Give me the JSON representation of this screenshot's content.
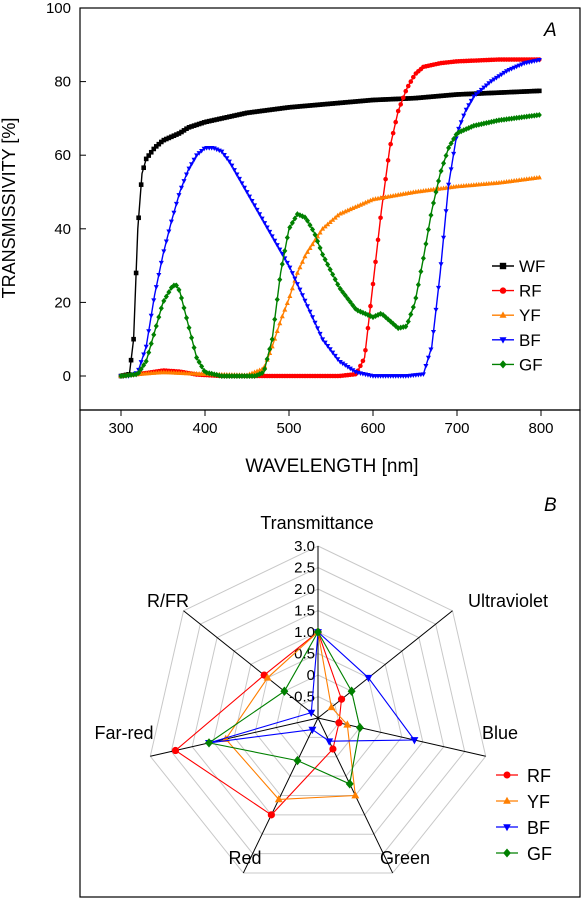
{
  "chart_data": [
    {
      "type": "line",
      "panel_label": "A",
      "xlabel": "WAVELENGTH [nm]",
      "ylabel": "TRANSMISSIVITY [%]",
      "xlim": [
        300,
        800
      ],
      "ylim": [
        0,
        100
      ],
      "xticks": [
        300,
        400,
        500,
        600,
        700,
        800
      ],
      "yticks": [
        0,
        20,
        40,
        60,
        80,
        100
      ],
      "grid": false,
      "legend_position": "right-lower",
      "series": [
        {
          "name": "WF",
          "color": "#000000",
          "marker": "square",
          "points": [
            [
              300,
              0
            ],
            [
              310,
              0.5
            ],
            [
              315,
              10
            ],
            [
              320,
              40
            ],
            [
              325,
              55
            ],
            [
              330,
              59
            ],
            [
              340,
              62
            ],
            [
              350,
              64
            ],
            [
              360,
              65
            ],
            [
              370,
              66
            ],
            [
              380,
              67.5
            ],
            [
              400,
              69
            ],
            [
              420,
              70
            ],
            [
              450,
              71.5
            ],
            [
              500,
              73
            ],
            [
              550,
              74
            ],
            [
              600,
              75
            ],
            [
              650,
              75.5
            ],
            [
              700,
              76.5
            ],
            [
              750,
              77
            ],
            [
              800,
              77.5
            ]
          ]
        },
        {
          "name": "RF",
          "color": "#ff0000",
          "marker": "circle",
          "points": [
            [
              300,
              0
            ],
            [
              330,
              0.8
            ],
            [
              350,
              1.5
            ],
            [
              370,
              1.2
            ],
            [
              390,
              0.4
            ],
            [
              420,
              0
            ],
            [
              500,
              0
            ],
            [
              560,
              0
            ],
            [
              580,
              0.5
            ],
            [
              590,
              5
            ],
            [
              600,
              25
            ],
            [
              610,
              45
            ],
            [
              620,
              62
            ],
            [
              630,
              72
            ],
            [
              640,
              78
            ],
            [
              650,
              82
            ],
            [
              660,
              84
            ],
            [
              680,
              85
            ],
            [
              700,
              85.5
            ],
            [
              750,
              86
            ],
            [
              800,
              86
            ]
          ]
        },
        {
          "name": "YF",
          "color": "#ff7f00",
          "marker": "triangle-up",
          "points": [
            [
              300,
              0
            ],
            [
              320,
              0.5
            ],
            [
              350,
              1
            ],
            [
              400,
              0.5
            ],
            [
              450,
              0.2
            ],
            [
              470,
              2
            ],
            [
              480,
              8
            ],
            [
              490,
              15
            ],
            [
              500,
              21
            ],
            [
              510,
              28
            ],
            [
              520,
              33
            ],
            [
              540,
              40
            ],
            [
              560,
              44
            ],
            [
              580,
              46
            ],
            [
              600,
              48
            ],
            [
              650,
              50
            ],
            [
              700,
              51.5
            ],
            [
              750,
              52.5
            ],
            [
              800,
              54
            ]
          ]
        },
        {
          "name": "BF",
          "color": "#0000ff",
          "marker": "triangle-down",
          "points": [
            [
              300,
              0
            ],
            [
              310,
              0
            ],
            [
              320,
              1
            ],
            [
              330,
              8
            ],
            [
              340,
              22
            ],
            [
              350,
              33
            ],
            [
              360,
              42
            ],
            [
              370,
              50
            ],
            [
              380,
              56
            ],
            [
              390,
              60
            ],
            [
              400,
              62
            ],
            [
              410,
              62
            ],
            [
              420,
              61
            ],
            [
              430,
              58
            ],
            [
              440,
              54
            ],
            [
              460,
              46
            ],
            [
              480,
              38
            ],
            [
              500,
              30
            ],
            [
              520,
              20
            ],
            [
              540,
              10
            ],
            [
              560,
              4
            ],
            [
              580,
              1
            ],
            [
              600,
              0
            ],
            [
              640,
              0
            ],
            [
              660,
              0.5
            ],
            [
              670,
              8
            ],
            [
              680,
              28
            ],
            [
              690,
              52
            ],
            [
              700,
              66
            ],
            [
              710,
              72
            ],
            [
              720,
              76
            ],
            [
              740,
              80
            ],
            [
              760,
              83
            ],
            [
              780,
              85
            ],
            [
              800,
              86
            ]
          ]
        },
        {
          "name": "GF",
          "color": "#008000",
          "marker": "diamond",
          "points": [
            [
              300,
              0
            ],
            [
              320,
              0.5
            ],
            [
              330,
              4
            ],
            [
              340,
              12
            ],
            [
              350,
              20
            ],
            [
              360,
              24
            ],
            [
              365,
              25
            ],
            [
              370,
              23
            ],
            [
              380,
              14
            ],
            [
              390,
              5
            ],
            [
              400,
              1
            ],
            [
              420,
              0
            ],
            [
              460,
              0
            ],
            [
              470,
              1
            ],
            [
              480,
              10
            ],
            [
              490,
              28
            ],
            [
              500,
              40
            ],
            [
              510,
              44
            ],
            [
              520,
              43
            ],
            [
              530,
              39
            ],
            [
              540,
              33
            ],
            [
              560,
              24
            ],
            [
              580,
              18
            ],
            [
              600,
              16
            ],
            [
              610,
              17
            ],
            [
              620,
              15
            ],
            [
              630,
              13
            ],
            [
              640,
              13.5
            ],
            [
              650,
              20
            ],
            [
              660,
              32
            ],
            [
              670,
              45
            ],
            [
              680,
              55
            ],
            [
              690,
              62
            ],
            [
              700,
              66
            ],
            [
              720,
              68
            ],
            [
              750,
              69.5
            ],
            [
              800,
              71
            ]
          ]
        }
      ]
    },
    {
      "type": "radar",
      "panel_label": "B",
      "axes": [
        "Transmittance",
        "Ultraviolet",
        "Blue",
        "Green",
        "Red",
        "Far-red",
        "R/FR"
      ],
      "radial_ticks": [
        "3.0",
        "2.5",
        "2.0",
        "1.5",
        "1.0",
        "0.5",
        "0",
        "-0.5"
      ],
      "rlim": [
        -1.0,
        3.0
      ],
      "grid": true,
      "legend_position": "bottom-right",
      "series": [
        {
          "name": "RF",
          "color": "#ff0000",
          "marker": "circle",
          "values": [
            1.0,
            -0.3,
            -0.5,
            -0.2,
            1.5,
            2.4,
            0.6
          ]
        },
        {
          "name": "YF",
          "color": "#ff7f00",
          "marker": "triangle-up",
          "values": [
            1.0,
            -0.6,
            -0.3,
            1.0,
            1.1,
            1.2,
            0.5
          ]
        },
        {
          "name": "BF",
          "color": "#0000ff",
          "marker": "triangle-down",
          "values": [
            1.0,
            0.5,
            1.3,
            -0.4,
            -0.7,
            1.6,
            -0.8
          ]
        },
        {
          "name": "GF",
          "color": "#008000",
          "marker": "diamond",
          "values": [
            1.0,
            0.0,
            0.0,
            0.7,
            0.1,
            1.6,
            0.0
          ]
        }
      ]
    }
  ]
}
